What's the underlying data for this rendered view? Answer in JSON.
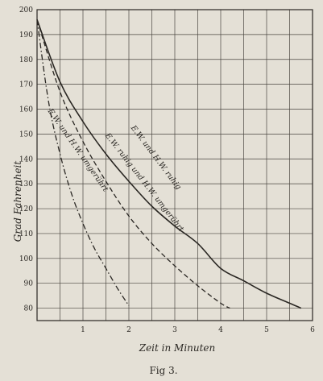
{
  "chart_data": {
    "type": "line",
    "title": "",
    "caption": "Fig 3.",
    "xlabel": "Zeit in Minuten",
    "ylabel": "Grad Fahrenheit",
    "xlim": [
      0,
      6
    ],
    "ylim": [
      75,
      200
    ],
    "x_ticks": [
      "1",
      "2",
      "3",
      "4",
      "5",
      "6"
    ],
    "y_ticks": [
      "200",
      "190",
      "180",
      "170",
      "160",
      "150",
      "140",
      "130",
      "120",
      "110",
      "100",
      "90",
      "80"
    ],
    "grid": true,
    "series": [
      {
        "name": "E.W. und H.W. ruhig",
        "style": "solid",
        "color": "#2a2723",
        "label_pos": {
          "x": 2.55,
          "y": 140,
          "angle": 53
        },
        "points": [
          [
            0,
            196
          ],
          [
            0.5,
            171
          ],
          [
            1,
            155
          ],
          [
            1.5,
            142
          ],
          [
            2,
            131
          ],
          [
            2.5,
            121
          ],
          [
            3,
            113
          ],
          [
            3.5,
            106
          ],
          [
            4,
            96
          ],
          [
            4.5,
            91
          ],
          [
            5,
            86
          ],
          [
            5.5,
            82
          ],
          [
            5.75,
            80
          ]
        ]
      },
      {
        "name": "E.W. ruhig und H.W. umgerührt",
        "style": "dashed",
        "color": "#2a2723",
        "label_pos": {
          "x": 2.3,
          "y": 130,
          "angle": 52
        },
        "points": [
          [
            0,
            196
          ],
          [
            0.5,
            167
          ],
          [
            1,
            147
          ],
          [
            1.5,
            131
          ],
          [
            2,
            117
          ],
          [
            2.5,
            106
          ],
          [
            3,
            97
          ],
          [
            3.5,
            89
          ],
          [
            4,
            82
          ],
          [
            4.2,
            80
          ]
        ]
      },
      {
        "name": "E.W. und H.W. umgerührt",
        "style": "dashdot",
        "color": "#2a2723",
        "label_pos": {
          "x": 0.85,
          "y": 143,
          "angle": 55
        },
        "points": [
          [
            0,
            196
          ],
          [
            0.25,
            163
          ],
          [
            0.5,
            142
          ],
          [
            0.75,
            126
          ],
          [
            1,
            114
          ],
          [
            1.25,
            104
          ],
          [
            1.5,
            96
          ],
          [
            1.75,
            88
          ],
          [
            2,
            81
          ]
        ]
      }
    ]
  }
}
